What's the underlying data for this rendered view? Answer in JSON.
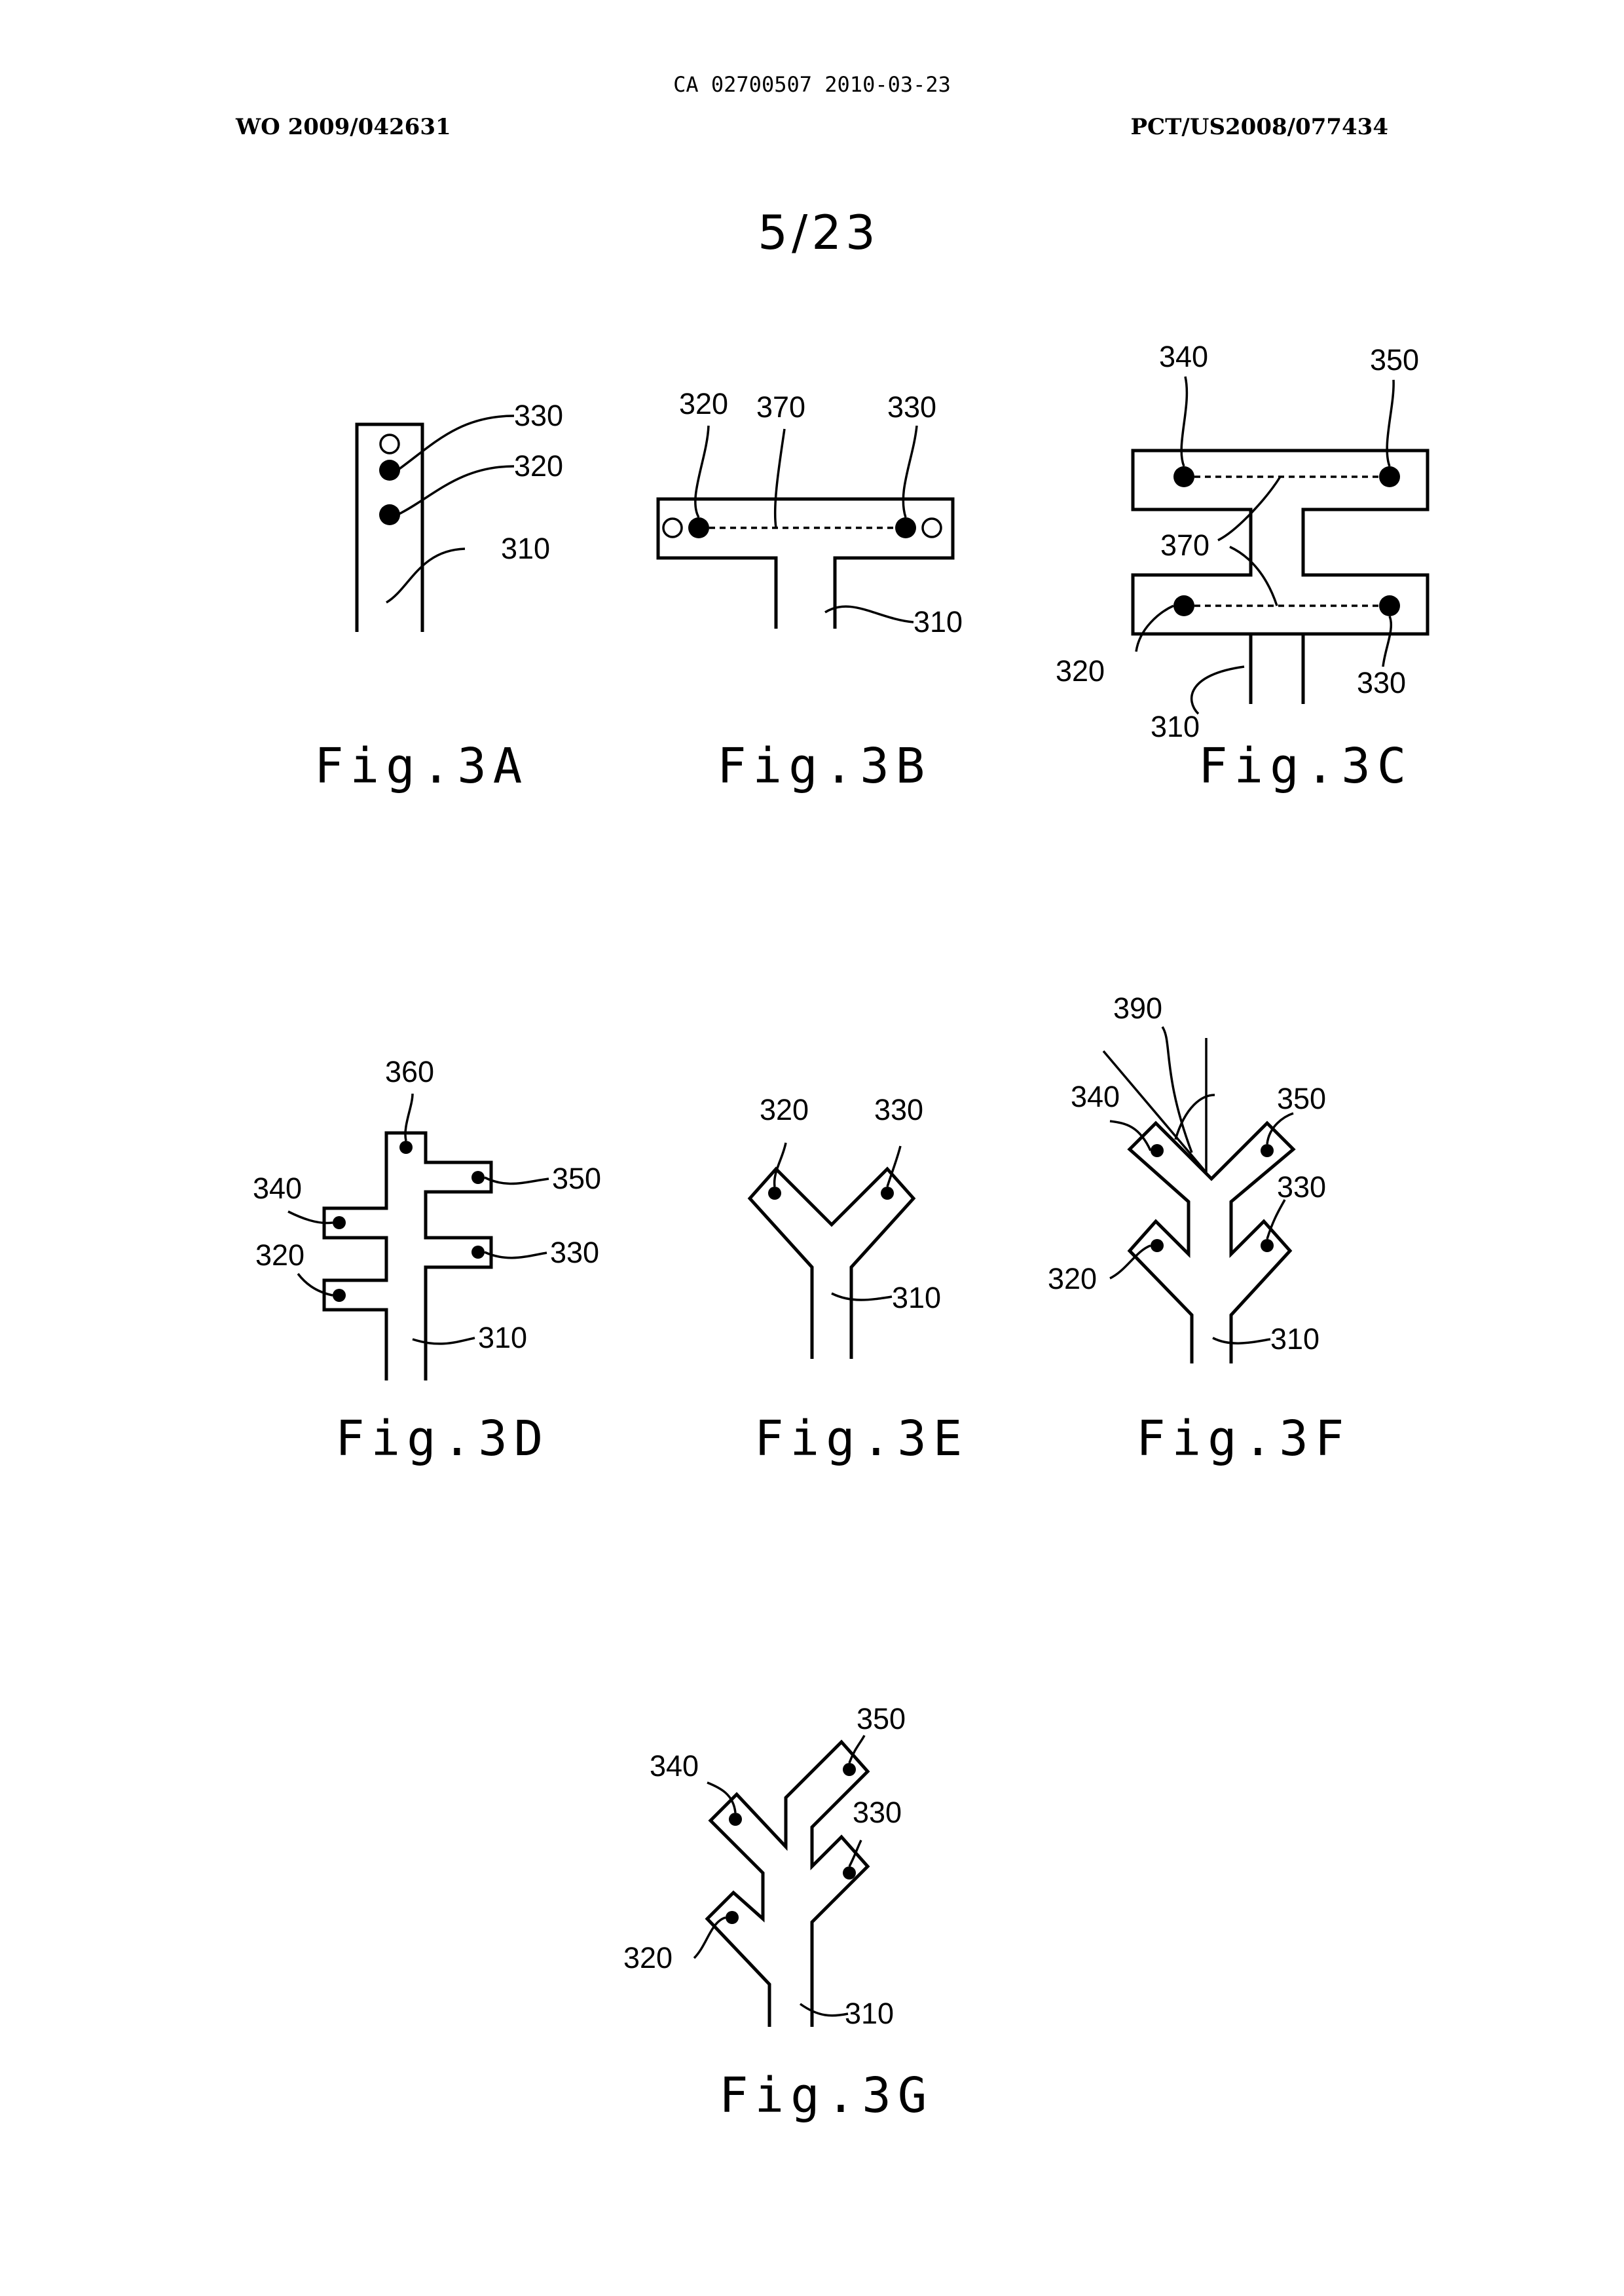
{
  "header": {
    "doc_number": "CA 02700507 2010-03-23",
    "wo_number": "WO 2009/042631",
    "pct_number": "PCT/US2008/077434",
    "sheet": "5/23"
  },
  "figures": {
    "fig3a": {
      "caption": "Fig.3A",
      "refs": [
        "330",
        "320",
        "310"
      ]
    },
    "fig3b": {
      "caption": "Fig.3B",
      "refs": [
        "320",
        "370",
        "330",
        "310"
      ]
    },
    "fig3c": {
      "caption": "Fig.3C",
      "refs": [
        "340",
        "350",
        "370",
        "320",
        "330",
        "310"
      ]
    },
    "fig3d": {
      "caption": "Fig.3D",
      "refs": [
        "360",
        "350",
        "340",
        "330",
        "320",
        "310"
      ]
    },
    "fig3e": {
      "caption": "Fig.3E",
      "refs": [
        "320",
        "330",
        "310"
      ]
    },
    "fig3f": {
      "caption": "Fig.3F",
      "refs": [
        "390",
        "340",
        "350",
        "330",
        "320",
        "310"
      ]
    },
    "fig3g": {
      "caption": "Fig.3G",
      "refs": [
        "350",
        "340",
        "330",
        "320",
        "310"
      ]
    }
  }
}
